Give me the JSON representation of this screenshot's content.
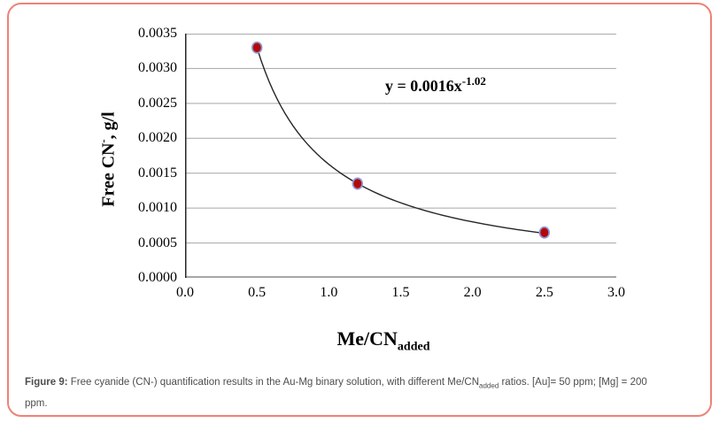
{
  "card": {
    "border_color": "#ee8277",
    "background": "#ffffff"
  },
  "chart_data": {
    "type": "scatter",
    "x": [
      0.5,
      1.2,
      2.5
    ],
    "y": [
      0.0033,
      0.00135,
      0.00065
    ],
    "trendline": {
      "type": "power",
      "a": 0.0016,
      "b": -1.02,
      "label_pre": "y = 0.0016x",
      "label_sup": "-1.02"
    },
    "xlabel_main": "Me/CN",
    "xlabel_sub": "added",
    "ylabel_pre": "Free CN",
    "ylabel_sup": "-",
    "ylabel_post": ", g/l",
    "xlim": [
      0.0,
      3.0
    ],
    "ylim": [
      0.0,
      0.0035
    ],
    "x_ticks": [
      "0.0",
      "0.5",
      "1.0",
      "1.5",
      "2.0",
      "2.5",
      "3.0"
    ],
    "y_ticks": [
      "0.0000",
      "0.0005",
      "0.0010",
      "0.0015",
      "0.0020",
      "0.0025",
      "0.0030",
      "0.0035"
    ],
    "grid": "horizontal",
    "legend": "none",
    "marker_fill": "#b20a0a",
    "marker_stroke": "#8e9bd8",
    "line_color": "#262626",
    "grid_color": "#a6a6a6",
    "x_axis_color": "#a6a6a6",
    "y_axis_color": "#262626"
  },
  "caption": {
    "bold": "Figure 9:",
    "line1_pre": " Free cyanide (CN-) quantification results in the Au-Mg binary solution, with different Me/CN",
    "line1_sub": "added",
    "line1_post": " ratios. [Au]= 50 ppm; [Mg] = 200",
    "line2": "ppm."
  }
}
